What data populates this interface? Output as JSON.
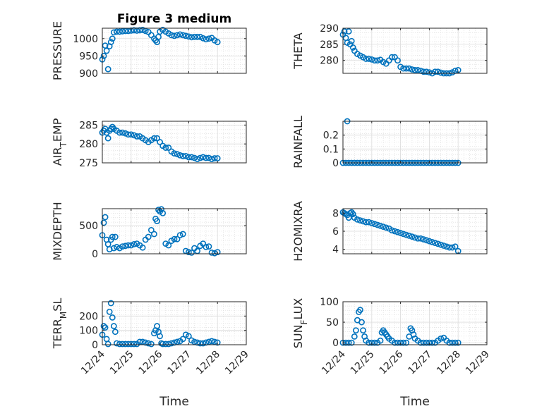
{
  "chart_data": [
    {
      "type": "scatter",
      "title": "Figure 3 medium",
      "ylabel": "PRESSURE",
      "xlabel": "",
      "ylim": [
        900,
        1030
      ],
      "yticks": [
        "900",
        "950",
        "1000"
      ],
      "ytick_values": [
        900,
        950,
        1000
      ],
      "xlim": [
        0,
        5
      ],
      "grid": true,
      "color": "#0072BD",
      "x": [
        0.0,
        0.05,
        0.1,
        0.15,
        0.2,
        0.25,
        0.3,
        0.35,
        0.4,
        0.5,
        0.6,
        0.7,
        0.8,
        0.9,
        1.0,
        1.1,
        1.2,
        1.3,
        1.4,
        1.5,
        1.6,
        1.7,
        1.8,
        1.85,
        1.9,
        1.95,
        2.0,
        2.1,
        2.2,
        2.3,
        2.4,
        2.5,
        2.6,
        2.7,
        2.8,
        2.9,
        3.0,
        3.1,
        3.2,
        3.3,
        3.4,
        3.5,
        3.6,
        3.7,
        3.8,
        3.9,
        4.0
      ],
      "y": [
        940,
        950,
        980,
        965,
        912,
        978,
        990,
        1000,
        1018,
        1020,
        1020,
        1021,
        1022,
        1022,
        1023,
        1024,
        1023,
        1024,
        1025,
        1022,
        1019,
        1010,
        1000,
        995,
        990,
        1005,
        1020,
        1025,
        1020,
        1015,
        1010,
        1008,
        1010,
        1012,
        1010,
        1008,
        1006,
        1004,
        1005,
        1005,
        1005,
        1001,
        998,
        1000,
        1002,
        995,
        990
      ]
    },
    {
      "type": "scatter",
      "title": "",
      "ylabel": "THETA",
      "xlabel": "",
      "ylim": [
        276,
        290
      ],
      "yticks": [
        "280",
        "285",
        "290"
      ],
      "ytick_values": [
        280,
        285,
        290
      ],
      "xlim": [
        0,
        5
      ],
      "grid": true,
      "color": "#0072BD",
      "x": [
        0.0,
        0.05,
        0.1,
        0.15,
        0.2,
        0.25,
        0.3,
        0.35,
        0.4,
        0.5,
        0.6,
        0.7,
        0.8,
        0.9,
        1.0,
        1.1,
        1.2,
        1.3,
        1.4,
        1.5,
        1.6,
        1.7,
        1.8,
        1.9,
        2.0,
        2.1,
        2.2,
        2.3,
        2.4,
        2.5,
        2.6,
        2.7,
        2.8,
        2.9,
        3.0,
        3.1,
        3.2,
        3.3,
        3.4,
        3.5,
        3.6,
        3.7,
        3.8,
        3.9,
        4.0
      ],
      "y": [
        288,
        289,
        287,
        285.5,
        289,
        285,
        286,
        284,
        283,
        282,
        281.5,
        281,
        280.5,
        280.5,
        280.3,
        280,
        280,
        280.2,
        279.5,
        279,
        280,
        281,
        281,
        280,
        278,
        277.5,
        277.5,
        277.5,
        277.2,
        277,
        277,
        276.8,
        276.5,
        276.5,
        276.3,
        276,
        276.5,
        276.5,
        276.2,
        276,
        276,
        276,
        276.3,
        276.8,
        277
      ]
    },
    {
      "type": "scatter",
      "title": "",
      "ylabel": "AIR_TEMP",
      "xlabel": "",
      "ylim": [
        275,
        286
      ],
      "yticks": [
        "275",
        "280",
        "285"
      ],
      "ytick_values": [
        275,
        280,
        285
      ],
      "xlim": [
        0,
        5
      ],
      "grid": true,
      "color": "#0072BD",
      "x": [
        0.0,
        0.05,
        0.1,
        0.15,
        0.2,
        0.25,
        0.3,
        0.35,
        0.4,
        0.5,
        0.6,
        0.7,
        0.8,
        0.9,
        1.0,
        1.1,
        1.2,
        1.3,
        1.4,
        1.5,
        1.6,
        1.7,
        1.8,
        1.9,
        2.0,
        2.1,
        2.2,
        2.3,
        2.4,
        2.5,
        2.6,
        2.7,
        2.8,
        2.9,
        3.0,
        3.1,
        3.2,
        3.3,
        3.4,
        3.5,
        3.6,
        3.7,
        3.8,
        3.9,
        4.0
      ],
      "y": [
        283,
        283.5,
        284,
        283,
        281.5,
        283.5,
        284,
        284.5,
        284,
        283.5,
        283,
        283,
        282.8,
        282.5,
        282.5,
        282.3,
        282,
        282,
        281.5,
        281,
        280.5,
        281,
        281.5,
        281.5,
        280.5,
        279.5,
        279,
        279,
        278,
        277.5,
        277.3,
        277,
        276.8,
        276.8,
        276.5,
        276.5,
        276.3,
        276,
        276.3,
        276.5,
        276.3,
        276.3,
        276,
        276.2,
        276.2
      ]
    },
    {
      "type": "scatter",
      "title": "",
      "ylabel": "RAINFALL",
      "xlabel": "",
      "ylim": [
        0,
        0.3
      ],
      "yticks": [
        "0",
        "0.1",
        "0.2"
      ],
      "ytick_values": [
        0,
        0.1,
        0.2
      ],
      "xlim": [
        0,
        5
      ],
      "grid": true,
      "color": "#0072BD",
      "x": [
        0.0,
        0.1,
        0.15,
        0.2,
        0.3,
        0.4,
        0.5,
        0.6,
        0.7,
        0.8,
        0.9,
        1.0,
        1.1,
        1.2,
        1.3,
        1.4,
        1.5,
        1.6,
        1.7,
        1.8,
        1.9,
        2.0,
        2.1,
        2.2,
        2.3,
        2.4,
        2.5,
        2.6,
        2.7,
        2.8,
        2.9,
        3.0,
        3.1,
        3.2,
        3.3,
        3.4,
        3.5,
        3.6,
        3.7,
        3.8,
        3.9,
        4.0
      ],
      "y": [
        0,
        0,
        0.3,
        0,
        0,
        0,
        0,
        0,
        0,
        0,
        0,
        0,
        0,
        0,
        0,
        0,
        0,
        0,
        0,
        0,
        0,
        0,
        0,
        0,
        0,
        0,
        0,
        0,
        0,
        0,
        0,
        0,
        0,
        0,
        0,
        0,
        0,
        0,
        0,
        0,
        0,
        0
      ]
    },
    {
      "type": "scatter",
      "title": "",
      "ylabel": "MIXDEPTH",
      "xlabel": "",
      "ylim": [
        0,
        800
      ],
      "yticks": [
        "0",
        "500"
      ],
      "ytick_values": [
        0,
        500
      ],
      "xlim": [
        0,
        5
      ],
      "grid": true,
      "color": "#0072BD",
      "x": [
        0.0,
        0.05,
        0.1,
        0.15,
        0.2,
        0.25,
        0.3,
        0.35,
        0.4,
        0.45,
        0.5,
        0.6,
        0.7,
        0.8,
        0.9,
        1.0,
        1.1,
        1.2,
        1.3,
        1.4,
        1.5,
        1.6,
        1.7,
        1.8,
        1.85,
        1.9,
        1.95,
        2.0,
        2.05,
        2.1,
        2.2,
        2.3,
        2.4,
        2.5,
        2.6,
        2.7,
        2.8,
        2.9,
        3.0,
        3.1,
        3.2,
        3.3,
        3.4,
        3.5,
        3.6,
        3.7,
        3.8,
        3.9,
        4.0
      ],
      "y": [
        330,
        550,
        650,
        250,
        170,
        80,
        250,
        300,
        100,
        300,
        120,
        100,
        130,
        140,
        150,
        150,
        170,
        180,
        150,
        110,
        250,
        300,
        420,
        350,
        620,
        580,
        780,
        750,
        790,
        720,
        180,
        150,
        230,
        260,
        260,
        330,
        350,
        50,
        30,
        20,
        100,
        50,
        140,
        180,
        120,
        130,
        20,
        10,
        30
      ]
    },
    {
      "type": "scatter",
      "title": "",
      "ylabel": "H2OMIXRA",
      "xlabel": "",
      "ylim": [
        3.5,
        8.5
      ],
      "yticks": [
        "4",
        "6",
        "8"
      ],
      "ytick_values": [
        4,
        6,
        8
      ],
      "xlim": [
        0,
        5
      ],
      "grid": true,
      "color": "#0072BD",
      "x": [
        0.0,
        0.05,
        0.1,
        0.15,
        0.2,
        0.25,
        0.3,
        0.35,
        0.4,
        0.5,
        0.6,
        0.7,
        0.8,
        0.9,
        1.0,
        1.1,
        1.2,
        1.3,
        1.4,
        1.5,
        1.6,
        1.7,
        1.8,
        1.9,
        2.0,
        2.1,
        2.2,
        2.3,
        2.4,
        2.5,
        2.6,
        2.7,
        2.8,
        2.9,
        3.0,
        3.1,
        3.2,
        3.3,
        3.4,
        3.5,
        3.6,
        3.7,
        3.8,
        3.9,
        4.0
      ],
      "y": [
        8.1,
        8.0,
        7.9,
        7.8,
        7.5,
        8.0,
        8.1,
        7.9,
        7.5,
        7.3,
        7.2,
        7.1,
        7.0,
        7.0,
        6.9,
        6.8,
        6.7,
        6.6,
        6.5,
        6.4,
        6.3,
        6.1,
        6.0,
        5.9,
        5.8,
        5.7,
        5.6,
        5.5,
        5.4,
        5.3,
        5.2,
        5.2,
        5.1,
        5.0,
        4.9,
        4.8,
        4.7,
        4.6,
        4.5,
        4.4,
        4.3,
        4.2,
        4.2,
        4.3,
        3.8
      ]
    },
    {
      "type": "scatter",
      "title": "",
      "ylabel": "TERR_MSL",
      "xlabel": "Time",
      "ylim": [
        0,
        300
      ],
      "yticks": [
        "0",
        "100",
        "200"
      ],
      "ytick_values": [
        0,
        100,
        200
      ],
      "xlim": [
        0,
        5
      ],
      "xticks": [
        "12/24",
        "12/25",
        "12/26",
        "12/27",
        "12/28",
        "12/29"
      ],
      "grid": true,
      "color": "#0072BD",
      "x": [
        0.0,
        0.05,
        0.1,
        0.15,
        0.2,
        0.25,
        0.3,
        0.35,
        0.4,
        0.45,
        0.5,
        0.6,
        0.7,
        0.8,
        0.9,
        1.0,
        1.1,
        1.2,
        1.3,
        1.4,
        1.5,
        1.6,
        1.7,
        1.8,
        1.85,
        1.9,
        1.95,
        2.0,
        2.05,
        2.1,
        2.2,
        2.3,
        2.4,
        2.5,
        2.6,
        2.7,
        2.8,
        2.9,
        3.0,
        3.1,
        3.2,
        3.3,
        3.4,
        3.5,
        3.6,
        3.7,
        3.8,
        3.9,
        4.0
      ],
      "y": [
        70,
        130,
        120,
        40,
        5,
        230,
        290,
        190,
        130,
        90,
        10,
        5,
        5,
        5,
        5,
        5,
        5,
        5,
        20,
        20,
        15,
        10,
        5,
        80,
        100,
        130,
        90,
        60,
        10,
        5,
        5,
        5,
        10,
        15,
        20,
        25,
        40,
        70,
        60,
        30,
        20,
        15,
        10,
        10,
        15,
        20,
        25,
        20,
        15
      ]
    },
    {
      "type": "scatter",
      "title": "",
      "ylabel": "SUN_FLUX",
      "xlabel": "Time",
      "ylim": [
        -5,
        100
      ],
      "yticks": [
        "0",
        "50",
        "100"
      ],
      "ytick_values": [
        0,
        50,
        100
      ],
      "xlim": [
        0,
        5
      ],
      "xticks": [
        "12/24",
        "12/25",
        "12/26",
        "12/27",
        "12/28",
        "12/29"
      ],
      "grid": true,
      "color": "#0072BD",
      "x": [
        0.0,
        0.1,
        0.2,
        0.3,
        0.4,
        0.45,
        0.5,
        0.55,
        0.6,
        0.65,
        0.7,
        0.75,
        0.8,
        0.9,
        1.0,
        1.1,
        1.2,
        1.3,
        1.35,
        1.4,
        1.45,
        1.5,
        1.55,
        1.6,
        1.7,
        1.8,
        1.9,
        2.0,
        2.1,
        2.2,
        2.3,
        2.35,
        2.4,
        2.45,
        2.5,
        2.6,
        2.7,
        2.8,
        2.9,
        3.0,
        3.1,
        3.2,
        3.3,
        3.4,
        3.5,
        3.6,
        3.7,
        3.8,
        3.9,
        4.0
      ],
      "y": [
        0,
        0,
        0,
        0,
        15,
        30,
        55,
        75,
        80,
        50,
        30,
        15,
        5,
        0,
        0,
        0,
        0,
        5,
        25,
        30,
        25,
        20,
        15,
        10,
        5,
        0,
        0,
        0,
        0,
        0,
        15,
        35,
        30,
        20,
        10,
        5,
        0,
        0,
        0,
        0,
        0,
        0,
        5,
        10,
        12,
        5,
        0,
        0,
        0,
        0
      ]
    }
  ]
}
